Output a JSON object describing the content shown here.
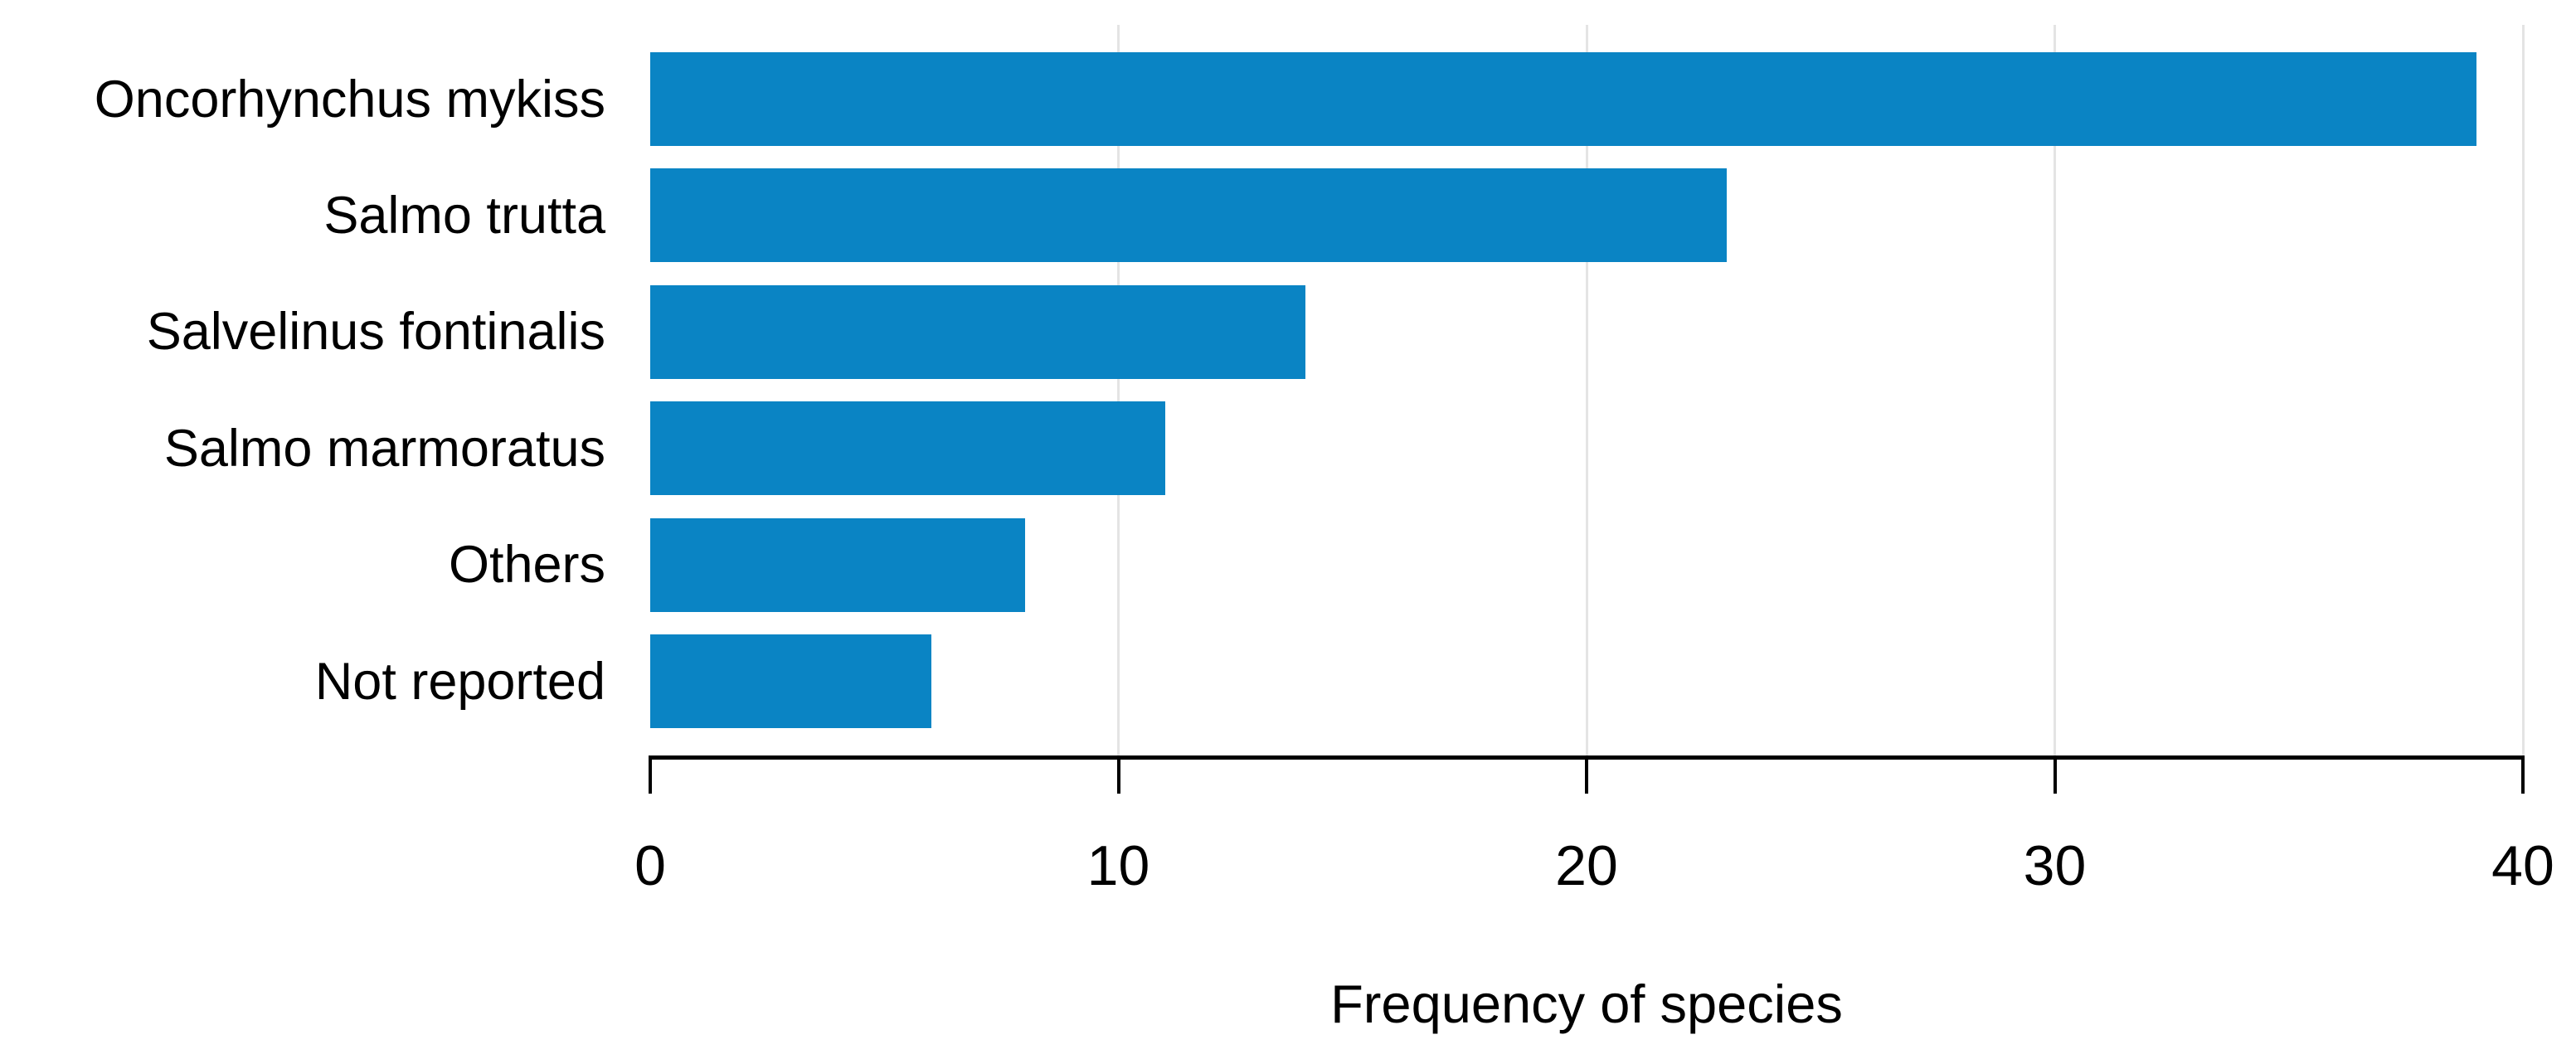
{
  "chart_data": {
    "type": "bar",
    "orientation": "horizontal",
    "title": "",
    "xlabel": "Frequency of species",
    "ylabel": "",
    "categories": [
      "Oncorhynchus mykiss",
      "Salmo trutta",
      "Salvelinus fontinalis",
      "Salmo marmoratus",
      "Others",
      "Not reported"
    ],
    "values": [
      39,
      23,
      14,
      11,
      8,
      6
    ],
    "xticks": [
      0,
      10,
      20,
      30,
      40
    ],
    "xlim": [
      0,
      40
    ],
    "grid": "vertical-major-only",
    "legend": "none",
    "bar_color": "#0a84c4",
    "gridline_color": "#e4e4e4",
    "axis_color": "#000000",
    "text_color": "#000000",
    "background_color": "#ffffff"
  }
}
